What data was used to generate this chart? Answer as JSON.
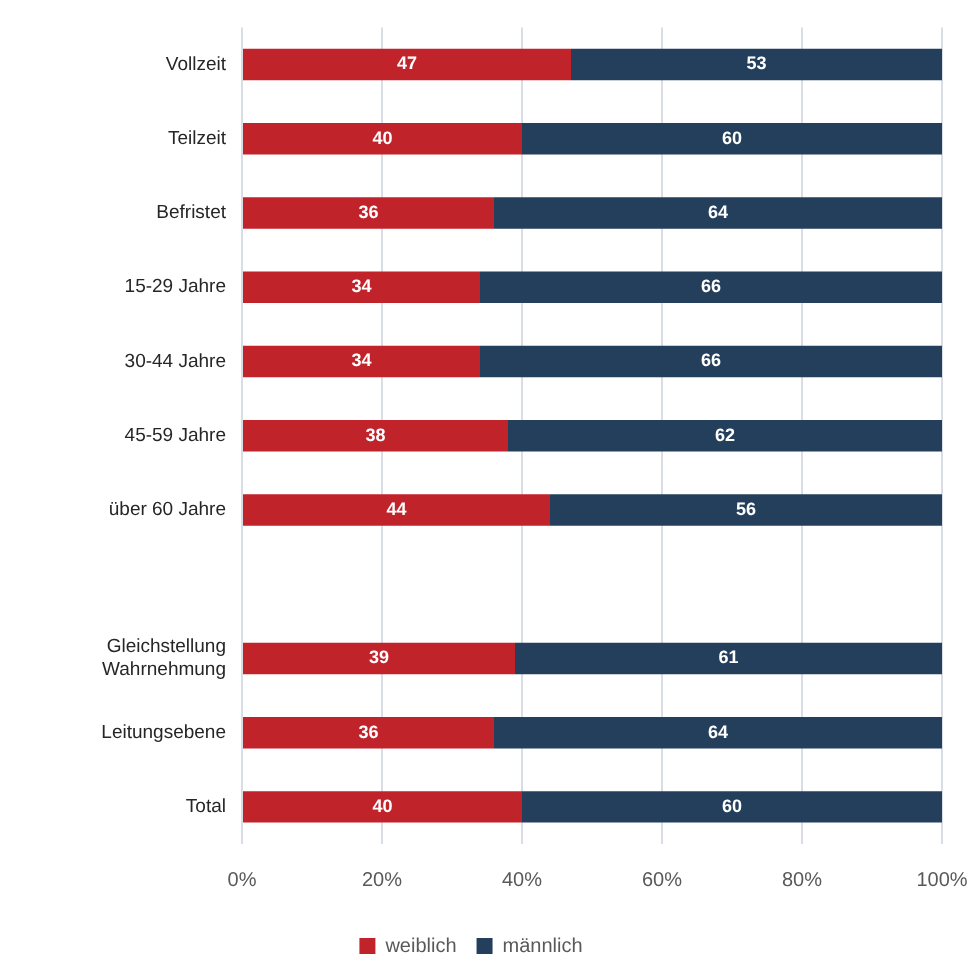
{
  "chart_data": {
    "type": "bar",
    "orientation": "horizontal",
    "stacked": true,
    "categories": [
      "Vollzeit",
      "Teilzeit",
      "Befristet",
      "15-29 Jahre",
      "30-44 Jahre",
      "45-59 Jahre",
      "über 60 Jahre",
      null,
      "Gleichstellung\nWahrnehmung",
      "Leitungsebene",
      "Total"
    ],
    "series": [
      {
        "name": "weiblich",
        "color": "#c1232b",
        "values": [
          47,
          40,
          36,
          34,
          34,
          38,
          44,
          null,
          39,
          36,
          40
        ]
      },
      {
        "name": "männlich",
        "color": "#243f5c",
        "values": [
          53,
          60,
          64,
          66,
          66,
          62,
          56,
          null,
          61,
          64,
          60
        ]
      }
    ],
    "xlim": [
      0,
      100
    ],
    "xticks": [
      {
        "value": 0,
        "label": "0%"
      },
      {
        "value": 20,
        "label": "20%"
      },
      {
        "value": 40,
        "label": "40%"
      },
      {
        "value": 60,
        "label": "60%"
      },
      {
        "value": 80,
        "label": "80%"
      },
      {
        "value": 100,
        "label": "100%"
      }
    ],
    "grid": "x",
    "legend": "bottom",
    "data_labels": true
  }
}
